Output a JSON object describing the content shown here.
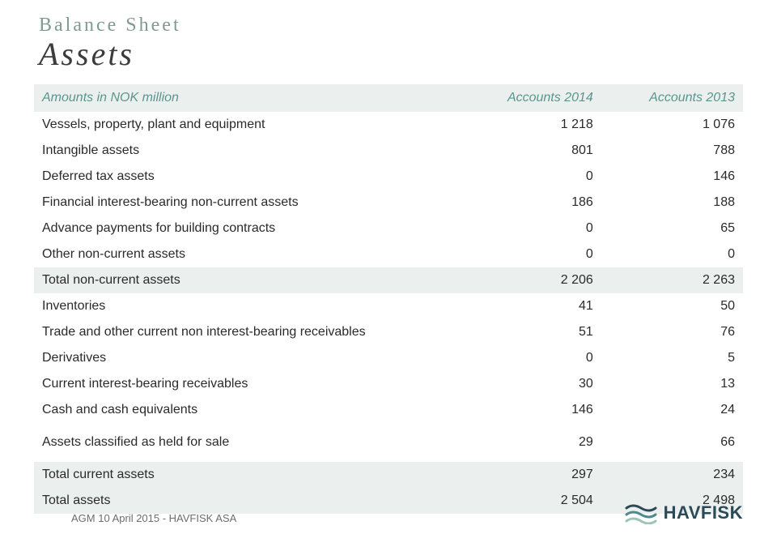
{
  "title_small": "Balance Sheet",
  "title_big": "Assets",
  "header": {
    "label": "Amounts in NOK million",
    "col1": "Accounts 2014",
    "col2": "Accounts 2013"
  },
  "rows": [
    {
      "label": "Vessels, property, plant and equipment",
      "v1": "1 218",
      "v2": "1 076",
      "style": "plain"
    },
    {
      "label": "Intangible assets",
      "v1": "801",
      "v2": "788",
      "style": "plain"
    },
    {
      "label": "Deferred tax assets",
      "v1": "0",
      "v2": "146",
      "style": "plain"
    },
    {
      "label": "Financial interest-bearing non-current assets",
      "v1": "186",
      "v2": "188",
      "style": "plain"
    },
    {
      "label": "Advance payments for building contracts",
      "v1": "0",
      "v2": "65",
      "style": "plain"
    },
    {
      "label": "Other non-current assets",
      "v1": "0",
      "v2": "0",
      "style": "plain"
    },
    {
      "label": "Total non-current assets",
      "v1": "2 206",
      "v2": "2 263",
      "style": "shade"
    },
    {
      "label": "Inventories",
      "v1": "41",
      "v2": "50",
      "style": "plain"
    },
    {
      "label": "Trade and other current non interest-bearing receivables",
      "v1": "51",
      "v2": "76",
      "style": "plain"
    },
    {
      "label": "Derivatives",
      "v1": "0",
      "v2": "5",
      "style": "plain"
    },
    {
      "label": "Current interest-bearing receivables",
      "v1": "30",
      "v2": "13",
      "style": "plain"
    },
    {
      "label": "Cash and cash equivalents",
      "v1": "146",
      "v2": "24",
      "style": "plain"
    },
    {
      "gap": true
    },
    {
      "label": "Assets classified as held for sale",
      "v1": "29",
      "v2": "66",
      "style": "plain"
    },
    {
      "gap": true
    },
    {
      "label": "Total current assets",
      "v1": "297",
      "v2": "234",
      "style": "shade"
    },
    {
      "label": "Total assets",
      "v1": "2 504",
      "v2": "2 498",
      "style": "shade"
    }
  ],
  "footer_text": "AGM 10 April 2015 - HAVFISK ASA",
  "logo_text": "HAVFISK",
  "colors": {
    "shade_bg": "#ebf0ee",
    "header_text": "#5a968d",
    "title_green": "#7f9b8f",
    "logo_dark": "#2b4a57",
    "logo_mid": "#4d8a8f",
    "logo_light": "#9ec3b7"
  }
}
